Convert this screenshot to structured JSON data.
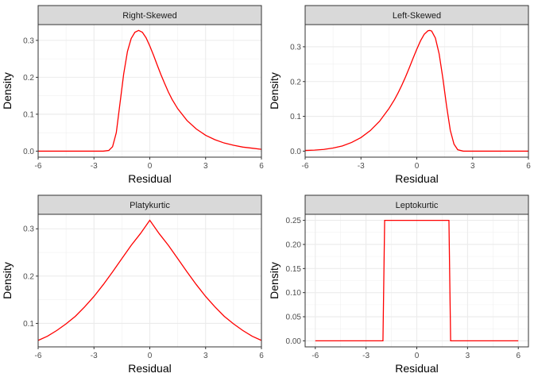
{
  "chart_data": [
    {
      "type": "line",
      "title": "Right-Skewed",
      "xlabel": "Residual",
      "ylabel": "Density",
      "xlim": [
        -6,
        6
      ],
      "ylim": [
        -0.0163,
        0.3427
      ],
      "xticks": [
        -6,
        -3,
        0,
        3,
        6
      ],
      "xtick_labels": [
        "-6",
        "-3",
        "0",
        "3",
        "6"
      ],
      "yticks": [
        0.0,
        0.1,
        0.2,
        0.3
      ],
      "ytick_labels": [
        "0.0",
        "0.1",
        "0.2",
        "0.3"
      ],
      "series": [
        {
          "name": "density",
          "color": "#ff0000",
          "x": [
            -6,
            -2.5,
            -2.2,
            -2.0,
            -1.8,
            -1.6,
            -1.4,
            -1.2,
            -1.0,
            -0.8,
            -0.6,
            -0.4,
            -0.2,
            0.0,
            0.2,
            0.4,
            0.6,
            0.8,
            1.0,
            1.2,
            1.5,
            2.0,
            2.5,
            3.0,
            3.5,
            4.0,
            4.5,
            5.0,
            5.5,
            6.0
          ],
          "y": [
            0.0,
            0.0,
            0.002,
            0.012,
            0.05,
            0.13,
            0.21,
            0.27,
            0.305,
            0.322,
            0.327,
            0.322,
            0.307,
            0.285,
            0.26,
            0.233,
            0.207,
            0.183,
            0.16,
            0.14,
            0.115,
            0.083,
            0.06,
            0.043,
            0.031,
            0.022,
            0.016,
            0.011,
            0.008,
            0.005
          ]
        }
      ]
    },
    {
      "type": "line",
      "title": "Left-Skewed",
      "xlabel": "Residual",
      "ylabel": "Density",
      "xlim": [
        -6,
        6
      ],
      "ylim": [
        -0.0173,
        0.3637
      ],
      "xticks": [
        -6,
        -3,
        0,
        3,
        6
      ],
      "xtick_labels": [
        "-6",
        "-3",
        "0",
        "3",
        "6"
      ],
      "yticks": [
        0.0,
        0.1,
        0.2,
        0.3
      ],
      "ytick_labels": [
        "0.0",
        "0.1",
        "0.2",
        "0.3"
      ],
      "series": [
        {
          "name": "density",
          "color": "#ff0000",
          "x": [
            -6.0,
            -5.5,
            -5.0,
            -4.5,
            -4.0,
            -3.5,
            -3.0,
            -2.5,
            -2.0,
            -1.5,
            -1.2,
            -1.0,
            -0.8,
            -0.6,
            -0.4,
            -0.2,
            0.0,
            0.2,
            0.4,
            0.6,
            0.7,
            0.8,
            1.0,
            1.2,
            1.4,
            1.6,
            1.8,
            2.0,
            2.2,
            2.5,
            3.0,
            6.0
          ],
          "y": [
            0.002,
            0.003,
            0.005,
            0.009,
            0.015,
            0.025,
            0.039,
            0.059,
            0.086,
            0.122,
            0.148,
            0.168,
            0.19,
            0.214,
            0.24,
            0.267,
            0.293,
            0.317,
            0.336,
            0.346,
            0.347,
            0.345,
            0.325,
            0.28,
            0.21,
            0.13,
            0.06,
            0.02,
            0.004,
            0.0,
            0.0,
            0.0
          ]
        }
      ]
    },
    {
      "type": "line",
      "title": "Platykurtic",
      "xlabel": "Residual",
      "ylabel": "Density",
      "xlim": [
        -6,
        6
      ],
      "ylim": [
        0.0504,
        0.3306
      ],
      "xticks": [
        -6,
        -3,
        0,
        3,
        6
      ],
      "xtick_labels": [
        "-6",
        "-3",
        "0",
        "3",
        "6"
      ],
      "yticks": [
        0.1,
        0.2,
        0.3
      ],
      "ytick_labels": [
        "0.1",
        "0.2",
        "0.3"
      ],
      "series": [
        {
          "name": "density",
          "color": "#ff0000",
          "x": [
            -6,
            -5.5,
            -5,
            -4.5,
            -4,
            -3.5,
            -3,
            -2.5,
            -2,
            -1.5,
            -1,
            -0.5,
            0,
            0.5,
            1,
            1.5,
            2,
            2.5,
            3,
            3.5,
            4,
            4.5,
            5,
            5.5,
            6
          ],
          "y": [
            0.064,
            0.073,
            0.085,
            0.099,
            0.115,
            0.135,
            0.157,
            0.182,
            0.209,
            0.237,
            0.265,
            0.29,
            0.318,
            0.29,
            0.265,
            0.237,
            0.209,
            0.182,
            0.157,
            0.135,
            0.115,
            0.099,
            0.085,
            0.073,
            0.064
          ]
        }
      ]
    },
    {
      "type": "line",
      "title": "Leptokurtic",
      "xlabel": "Residual",
      "ylabel": "Density",
      "xlim": [
        -6.6,
        6.6
      ],
      "ylim": [
        -0.0125,
        0.2625
      ],
      "xticks": [
        -6,
        -3,
        0,
        3,
        6
      ],
      "xtick_labels": [
        "-6",
        "-3",
        "0",
        "3",
        "6"
      ],
      "yticks": [
        0.0,
        0.05,
        0.1,
        0.15,
        0.2,
        0.25
      ],
      "ytick_labels": [
        "0.00",
        "0.05",
        "0.10",
        "0.15",
        "0.20",
        "0.25"
      ],
      "series": [
        {
          "name": "density",
          "color": "#ff0000",
          "x": [
            -6,
            -2.0,
            -1.9,
            1.9,
            2.0,
            6
          ],
          "y": [
            0.0,
            0.0,
            0.25,
            0.25,
            0.0,
            0.0
          ]
        }
      ]
    }
  ]
}
